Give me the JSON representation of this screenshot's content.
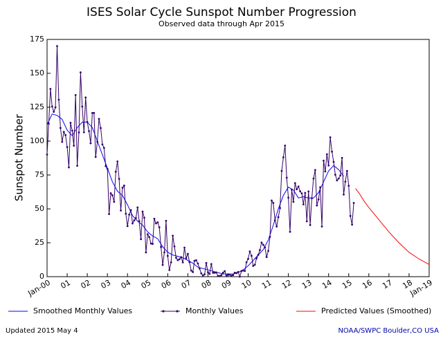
{
  "chart_data": {
    "type": "line",
    "title": "ISES Solar Cycle Sunspot Number Progression",
    "subtitle": "Observed data through Apr 2015",
    "y_label": "Sunspot Number",
    "updated": "Updated 2015 May 4",
    "source": "NOAA/SWPC Boulder,CO USA",
    "xlim": [
      2000,
      2019
    ],
    "ylim": [
      0,
      175
    ],
    "yticks": [
      0,
      25,
      50,
      75,
      100,
      125,
      150,
      175
    ],
    "xticks": [
      {
        "value": 2000,
        "label": "Jan-00"
      },
      {
        "value": 2001,
        "label": "01"
      },
      {
        "value": 2002,
        "label": "02"
      },
      {
        "value": 2003,
        "label": "03"
      },
      {
        "value": 2004,
        "label": "04"
      },
      {
        "value": 2005,
        "label": "05"
      },
      {
        "value": 2006,
        "label": "06"
      },
      {
        "value": 2007,
        "label": "07"
      },
      {
        "value": 2008,
        "label": "08"
      },
      {
        "value": 2009,
        "label": "09"
      },
      {
        "value": 2010,
        "label": "10"
      },
      {
        "value": 2011,
        "label": "11"
      },
      {
        "value": 2012,
        "label": "12"
      },
      {
        "value": 2013,
        "label": "13"
      },
      {
        "value": 2014,
        "label": "14"
      },
      {
        "value": 2015,
        "label": "15"
      },
      {
        "value": 2016,
        "label": "16"
      },
      {
        "value": 2017,
        "label": "17"
      },
      {
        "value": 2018,
        "label": "18"
      },
      {
        "value": 2019,
        "label": "Jan-19"
      }
    ],
    "series": [
      {
        "name": "Smoothed Monthly Values",
        "color": "#0000ff",
        "markers": false,
        "x": [
          2000,
          2000.25,
          2000.5,
          2000.75,
          2001,
          2001.25,
          2001.5,
          2001.75,
          2002,
          2002.25,
          2002.5,
          2002.75,
          2003,
          2003.25,
          2003.5,
          2003.75,
          2004,
          2004.25,
          2004.5,
          2004.75,
          2005,
          2005.25,
          2005.5,
          2005.75,
          2006,
          2006.25,
          2006.5,
          2006.75,
          2007,
          2007.25,
          2007.5,
          2007.75,
          2008,
          2008.25,
          2008.5,
          2008.75,
          2009,
          2009.25,
          2009.5,
          2009.75,
          2010,
          2010.25,
          2010.5,
          2010.75,
          2011,
          2011.25,
          2011.5,
          2011.75,
          2012,
          2012.25,
          2012.5,
          2012.75,
          2013,
          2013.25,
          2013.5,
          2013.75,
          2014,
          2014.25,
          2014.5,
          2014.75
        ],
        "values": [
          112,
          120,
          119,
          116,
          108,
          104,
          110,
          114,
          114,
          110,
          100,
          90,
          80,
          70,
          63,
          60,
          53,
          45,
          41,
          38,
          33,
          30,
          28,
          22,
          18,
          16,
          15,
          14,
          12,
          10,
          7,
          6,
          5,
          4,
          3,
          2,
          2,
          2,
          3,
          5,
          8,
          12,
          16,
          20,
          27,
          38,
          50,
          60,
          66,
          64,
          58,
          59,
          58,
          58,
          62,
          70,
          78,
          82,
          79,
          74
        ]
      },
      {
        "name": "Monthly Values",
        "color": "#330066",
        "markers": true,
        "x": [
          2000,
          2000.083,
          2000.167,
          2000.25,
          2000.333,
          2000.417,
          2000.5,
          2000.583,
          2000.667,
          2000.75,
          2000.833,
          2000.917,
          2001,
          2001.083,
          2001.167,
          2001.25,
          2001.333,
          2001.417,
          2001.5,
          2001.583,
          2001.667,
          2001.75,
          2001.833,
          2001.917,
          2002,
          2002.083,
          2002.167,
          2002.25,
          2002.333,
          2002.417,
          2002.5,
          2002.583,
          2002.667,
          2002.75,
          2002.833,
          2002.917,
          2003,
          2003.083,
          2003.167,
          2003.25,
          2003.333,
          2003.417,
          2003.5,
          2003.583,
          2003.667,
          2003.75,
          2003.833,
          2003.917,
          2004,
          2004.083,
          2004.167,
          2004.25,
          2004.333,
          2004.417,
          2004.5,
          2004.583,
          2004.667,
          2004.75,
          2004.833,
          2004.917,
          2005,
          2005.083,
          2005.167,
          2005.25,
          2005.333,
          2005.417,
          2005.5,
          2005.583,
          2005.667,
          2005.75,
          2005.833,
          2005.917,
          2006,
          2006.083,
          2006.167,
          2006.25,
          2006.333,
          2006.417,
          2006.5,
          2006.583,
          2006.667,
          2006.75,
          2006.833,
          2006.917,
          2007,
          2007.083,
          2007.167,
          2007.25,
          2007.333,
          2007.417,
          2007.5,
          2007.583,
          2007.667,
          2007.75,
          2007.833,
          2007.917,
          2008,
          2008.083,
          2008.167,
          2008.25,
          2008.333,
          2008.417,
          2008.5,
          2008.583,
          2008.667,
          2008.75,
          2008.833,
          2008.917,
          2009,
          2009.083,
          2009.167,
          2009.25,
          2009.333,
          2009.417,
          2009.5,
          2009.583,
          2009.667,
          2009.75,
          2009.833,
          2009.917,
          2010,
          2010.083,
          2010.167,
          2010.25,
          2010.333,
          2010.417,
          2010.5,
          2010.583,
          2010.667,
          2010.75,
          2010.833,
          2010.917,
          2011,
          2011.083,
          2011.167,
          2011.25,
          2011.333,
          2011.417,
          2011.5,
          2011.583,
          2011.667,
          2011.75,
          2011.833,
          2011.917,
          2012,
          2012.083,
          2012.167,
          2012.25,
          2012.333,
          2012.417,
          2012.5,
          2012.583,
          2012.667,
          2012.75,
          2012.833,
          2012.917,
          2013,
          2013.083,
          2013.167,
          2013.25,
          2013.333,
          2013.417,
          2013.5,
          2013.583,
          2013.667,
          2013.75,
          2013.833,
          2013.917,
          2014,
          2014.083,
          2014.167,
          2014.25,
          2014.333,
          2014.417,
          2014.5,
          2014.583,
          2014.667,
          2014.75,
          2014.833,
          2014.917,
          2015,
          2015.083,
          2015.167,
          2015.25
        ],
        "values": [
          90.1,
          112.9,
          138.5,
          125.5,
          121.6,
          124.9,
          170.1,
          130.5,
          109.7,
          99.4,
          106.8,
          104.4,
          95.6,
          80.6,
          113.5,
          107.7,
          96.6,
          134.0,
          81.8,
          106.4,
          150.7,
          125.5,
          106.5,
          132.2,
          114.1,
          107.4,
          98.4,
          120.7,
          120.8,
          88.3,
          99.6,
          116.4,
          109.6,
          97.5,
          95.0,
          81.6,
          79.5,
          46.2,
          61.5,
          60.0,
          55.2,
          77.4,
          85.0,
          72.1,
          48.8,
          65.6,
          67.2,
          46.5,
          37.3,
          45.8,
          49.1,
          39.3,
          41.5,
          43.2,
          51.1,
          40.9,
          27.7,
          48.0,
          43.5,
          17.9,
          31.3,
          29.2,
          24.5,
          24.2,
          42.7,
          39.3,
          40.1,
          36.4,
          21.9,
          8.7,
          18.0,
          41.2,
          15.3,
          4.9,
          10.6,
          30.2,
          22.3,
          13.9,
          12.2,
          12.9,
          14.4,
          10.5,
          21.4,
          13.6,
          16.8,
          10.7,
          4.5,
          3.4,
          11.7,
          12.1,
          9.7,
          6.0,
          2.4,
          0.9,
          1.7,
          10.1,
          3.3,
          2.1,
          9.3,
          2.9,
          2.9,
          3.1,
          0.5,
          0.5,
          1.1,
          2.9,
          4.1,
          0.8,
          1.5,
          1.4,
          0.7,
          1.2,
          2.9,
          2.6,
          3.5,
          0.0,
          4.2,
          4.6,
          4.2,
          10.6,
          13.1,
          18.6,
          15.4,
          7.9,
          8.8,
          13.5,
          16.1,
          19.6,
          25.2,
          23.5,
          21.6,
          14.5,
          19.0,
          29.4,
          56.2,
          54.4,
          41.6,
          37.0,
          43.9,
          50.6,
          78.0,
          88.0,
          96.7,
          73.0,
          58.3,
          33.1,
          64.2,
          55.2,
          69.0,
          64.5,
          66.5,
          63.0,
          61.4,
          53.3,
          61.8,
          40.8,
          62.9,
          38.1,
          57.9,
          72.4,
          78.7,
          52.5,
          57.0,
          66.0,
          37.0,
          85.6,
          77.6,
          90.3,
          82.0,
          102.8,
          92.2,
          84.7,
          75.2,
          71.0,
          72.4,
          74.6,
          87.6,
          60.6,
          70.1,
          78.0,
          67.0,
          44.8,
          38.4,
          54.4
        ]
      },
      {
        "name": "Predicted Values (Smoothed)",
        "color": "#ff0000",
        "markers": false,
        "x": [
          2015.333,
          2015.5,
          2015.75,
          2016,
          2016.5,
          2017,
          2017.5,
          2018,
          2018.5,
          2019
        ],
        "values": [
          65,
          62,
          56,
          51,
          42,
          33,
          25,
          18,
          13,
          9
        ]
      }
    ]
  }
}
